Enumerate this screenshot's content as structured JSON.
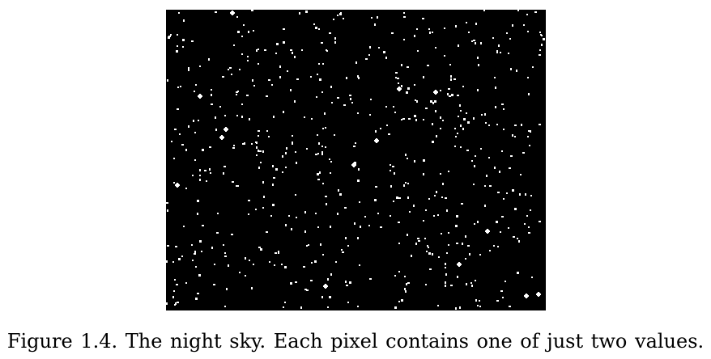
{
  "figure": {
    "caption": "Figure 1.4. The night sky. Each pixel contains one of just two values.",
    "image_icon": "binary-night-sky-image",
    "colors": {
      "sky": "#000000",
      "star": "#ffffff"
    }
  }
}
